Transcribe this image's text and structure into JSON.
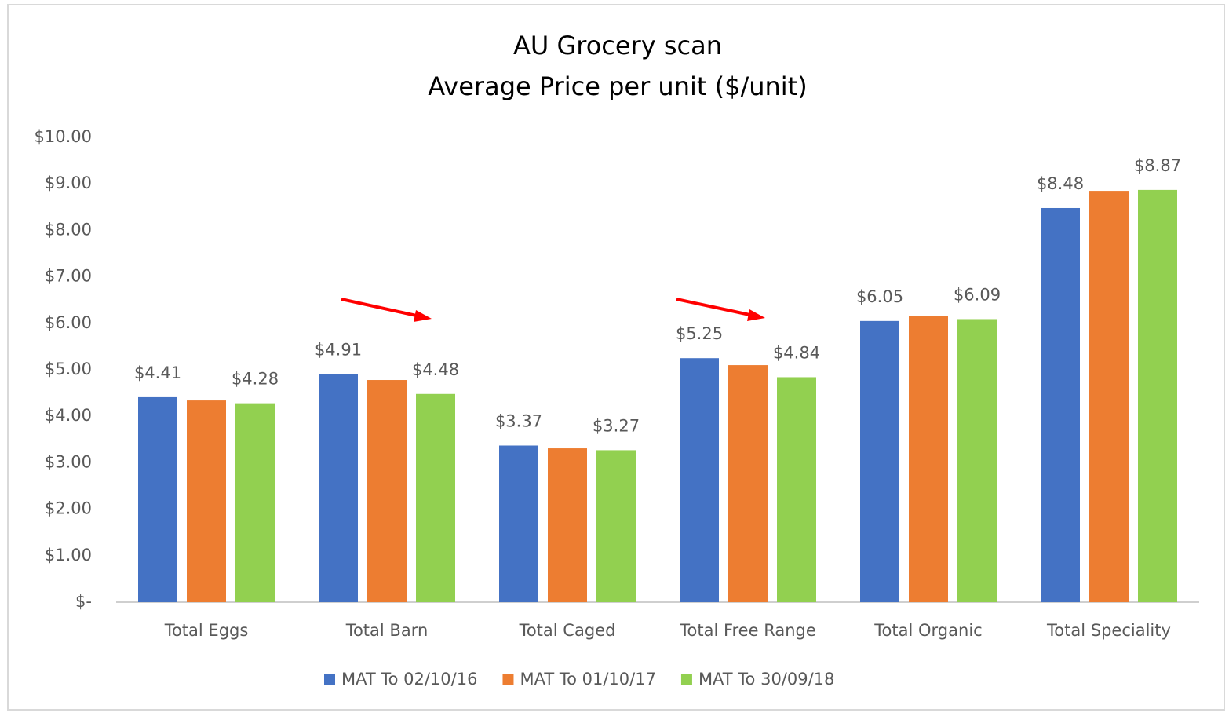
{
  "chart_data": {
    "type": "bar",
    "title": [
      "AU Grocery scan",
      "Average Price per unit ($/unit)"
    ],
    "categories": [
      "Total Eggs",
      "Total Barn",
      "Total Caged",
      "Total Free Range",
      "Total Organic",
      "Total Speciality"
    ],
    "series": [
      {
        "name": "MAT To 02/10/16",
        "color": "#4472c4",
        "values": [
          4.41,
          4.91,
          3.37,
          5.25,
          6.05,
          8.48
        ],
        "value_labels": [
          "$4.41",
          "$4.91",
          "$3.37",
          "$5.25",
          "$6.05",
          "$8.48"
        ]
      },
      {
        "name": "MAT To 01/10/17",
        "color": "#ed7d31",
        "values": [
          4.34,
          4.78,
          3.31,
          5.1,
          6.15,
          8.85
        ]
      },
      {
        "name": "MAT To 30/09/18",
        "color": "#92d050",
        "values": [
          4.28,
          4.48,
          3.27,
          4.84,
          6.09,
          8.87
        ],
        "value_labels": [
          "$4.28",
          "$4.48",
          "$3.27",
          "$4.84",
          "$6.09",
          "$8.87"
        ]
      }
    ],
    "ylim": [
      0,
      10
    ],
    "yticks": [
      {
        "value": 0,
        "label": "$-"
      },
      {
        "value": 1,
        "label": "$1.00"
      },
      {
        "value": 2,
        "label": "$2.00"
      },
      {
        "value": 3,
        "label": "$3.00"
      },
      {
        "value": 4,
        "label": "$4.00"
      },
      {
        "value": 5,
        "label": "$5.00"
      },
      {
        "value": 6,
        "label": "$6.00"
      },
      {
        "value": 7,
        "label": "$7.00"
      },
      {
        "value": 8,
        "label": "$8.00"
      },
      {
        "value": 9,
        "label": "$9.00"
      },
      {
        "value": 10,
        "label": "$10.00"
      }
    ],
    "grid": false,
    "legend": "bottom"
  }
}
